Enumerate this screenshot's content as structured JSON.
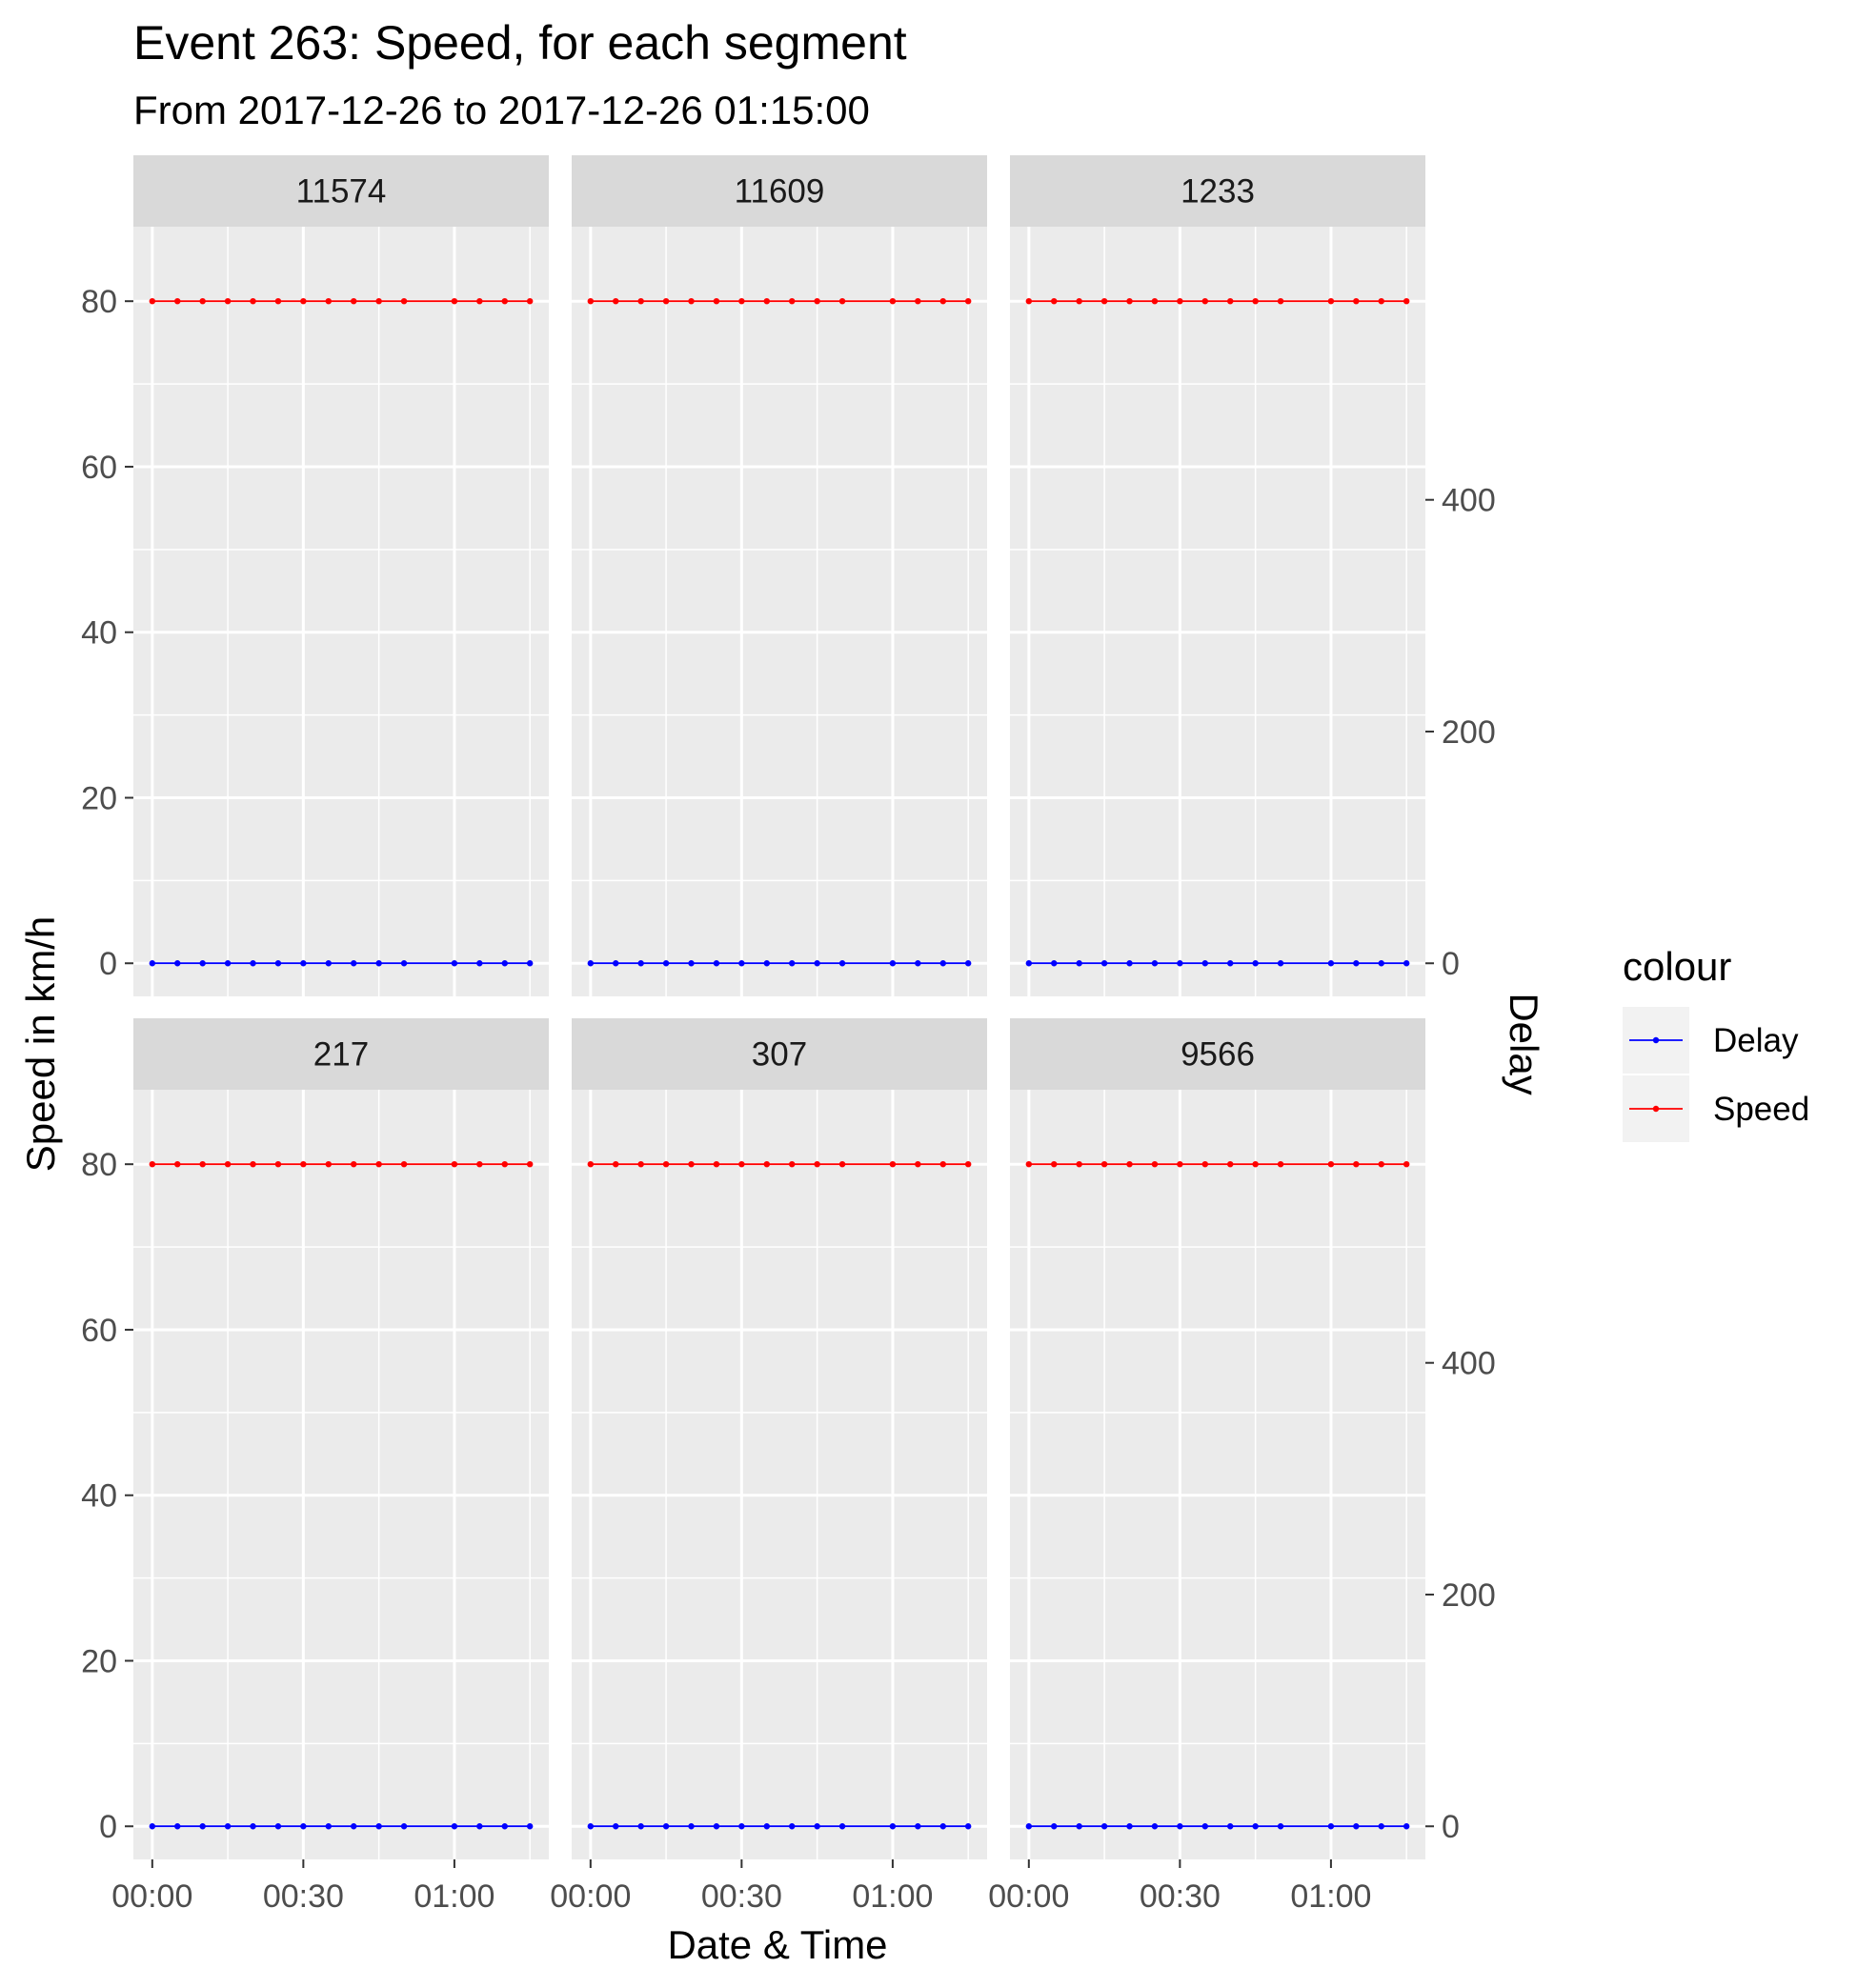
{
  "chart_data": {
    "type": "line",
    "title": "Event 263: Speed, for each segment",
    "subtitle": "From 2017-12-26 to 2017-12-26 01:15:00",
    "xlabel": "Date & Time",
    "ylabel": "Speed in km/h",
    "y2label": "Delay",
    "x_tick_labels": [
      "00:00",
      "00:30",
      "01:00"
    ],
    "x_tick_minutes": [
      0,
      30,
      60
    ],
    "y_ticks": [
      0,
      20,
      40,
      60,
      80
    ],
    "y2_ticks": [
      0,
      200,
      400
    ],
    "ylim": [
      -4,
      89
    ],
    "y2_to_y_factor": 0.14,
    "grid": true,
    "legend": {
      "title": "colour",
      "position": "right",
      "entries": [
        {
          "label": "Delay",
          "color": "#0000ff"
        },
        {
          "label": "Speed",
          "color": "#ff0000"
        }
      ]
    },
    "x": [
      "00:00",
      "00:05",
      "00:10",
      "00:15",
      "00:20",
      "00:25",
      "00:30",
      "00:35",
      "00:40",
      "00:45",
      "00:50",
      "01:00",
      "01:05",
      "01:10",
      "01:15"
    ],
    "x_minutes": [
      0,
      5,
      10,
      15,
      20,
      25,
      30,
      35,
      40,
      45,
      50,
      60,
      65,
      70,
      75
    ],
    "facets": [
      {
        "label": "11574",
        "series": [
          {
            "name": "Speed",
            "color": "#ff0000",
            "values": [
              80,
              80,
              80,
              80,
              80,
              80,
              80,
              80,
              80,
              80,
              80,
              80,
              80,
              80,
              80
            ]
          },
          {
            "name": "Delay",
            "color": "#0000ff",
            "values": [
              0,
              0,
              0,
              0,
              0,
              0,
              0,
              0,
              0,
              0,
              0,
              0,
              0,
              0,
              0
            ]
          }
        ]
      },
      {
        "label": "11609",
        "series": [
          {
            "name": "Speed",
            "color": "#ff0000",
            "values": [
              80,
              80,
              80,
              80,
              80,
              80,
              80,
              80,
              80,
              80,
              80,
              80,
              80,
              80,
              80
            ]
          },
          {
            "name": "Delay",
            "color": "#0000ff",
            "values": [
              0,
              0,
              0,
              0,
              0,
              0,
              0,
              0,
              0,
              0,
              0,
              0,
              0,
              0,
              0
            ]
          }
        ]
      },
      {
        "label": "1233",
        "series": [
          {
            "name": "Speed",
            "color": "#ff0000",
            "values": [
              80,
              80,
              80,
              80,
              80,
              80,
              80,
              80,
              80,
              80,
              80,
              80,
              80,
              80,
              80
            ]
          },
          {
            "name": "Delay",
            "color": "#0000ff",
            "values": [
              0,
              0,
              0,
              0,
              0,
              0,
              0,
              0,
              0,
              0,
              0,
              0,
              0,
              0,
              0
            ]
          }
        ]
      },
      {
        "label": "217",
        "series": [
          {
            "name": "Speed",
            "color": "#ff0000",
            "values": [
              80,
              80,
              80,
              80,
              80,
              80,
              80,
              80,
              80,
              80,
              80,
              80,
              80,
              80,
              80
            ]
          },
          {
            "name": "Delay",
            "color": "#0000ff",
            "values": [
              0,
              0,
              0,
              0,
              0,
              0,
              0,
              0,
              0,
              0,
              0,
              0,
              0,
              0,
              0
            ]
          }
        ]
      },
      {
        "label": "307",
        "series": [
          {
            "name": "Speed",
            "color": "#ff0000",
            "values": [
              80,
              80,
              80,
              80,
              80,
              80,
              80,
              80,
              80,
              80,
              80,
              80,
              80,
              80,
              80
            ]
          },
          {
            "name": "Delay",
            "color": "#0000ff",
            "values": [
              0,
              0,
              0,
              0,
              0,
              0,
              0,
              0,
              0,
              0,
              0,
              0,
              0,
              0,
              0
            ]
          }
        ]
      },
      {
        "label": "9566",
        "series": [
          {
            "name": "Speed",
            "color": "#ff0000",
            "values": [
              80,
              80,
              80,
              80,
              80,
              80,
              80,
              80,
              80,
              80,
              80,
              80,
              80,
              80,
              80
            ]
          },
          {
            "name": "Delay",
            "color": "#0000ff",
            "values": [
              0,
              0,
              0,
              0,
              0,
              0,
              0,
              0,
              0,
              0,
              0,
              0,
              0,
              0,
              0
            ]
          }
        ]
      }
    ]
  }
}
